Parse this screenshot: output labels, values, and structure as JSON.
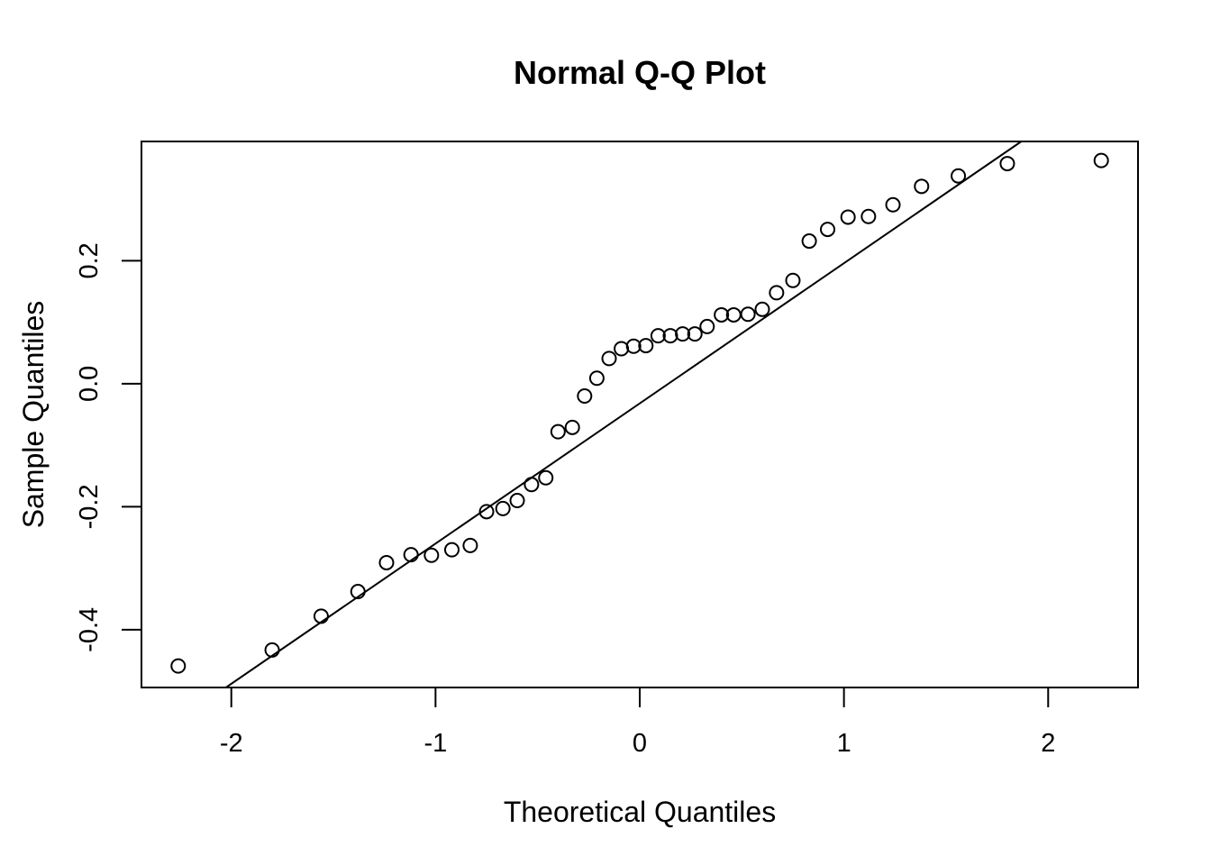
{
  "chart_data": {
    "type": "scatter",
    "title": "Normal Q-Q Plot",
    "xlabel": "Theoretical Quantiles",
    "ylabel": "Sample Quantiles",
    "xlim": [
      -2.44,
      2.44
    ],
    "ylim": [
      -0.494,
      0.394
    ],
    "x_ticks": [
      -2,
      -1,
      0,
      1,
      2
    ],
    "x_tick_labels": [
      "-2",
      "-1",
      "0",
      "1",
      "2"
    ],
    "y_ticks": [
      -0.4,
      -0.2,
      0.0,
      0.2
    ],
    "y_tick_labels": [
      "-0.4",
      "-0.2",
      "0.0",
      "0.2"
    ],
    "grid": false,
    "reference_line": {
      "intercept": -0.032,
      "slope": 0.228
    },
    "points": [
      [
        -2.26,
        -0.459
      ],
      [
        -1.8,
        -0.433
      ],
      [
        -1.56,
        -0.378
      ],
      [
        -1.38,
        -0.338
      ],
      [
        -1.24,
        -0.291
      ],
      [
        -1.12,
        -0.278
      ],
      [
        -1.02,
        -0.279
      ],
      [
        -0.92,
        -0.27
      ],
      [
        -0.83,
        -0.263
      ],
      [
        -0.75,
        -0.208
      ],
      [
        -0.67,
        -0.203
      ],
      [
        -0.6,
        -0.19
      ],
      [
        -0.53,
        -0.164
      ],
      [
        -0.46,
        -0.153
      ],
      [
        -0.4,
        -0.078
      ],
      [
        -0.33,
        -0.071
      ],
      [
        -0.27,
        -0.02
      ],
      [
        -0.21,
        0.009
      ],
      [
        -0.15,
        0.041
      ],
      [
        -0.09,
        0.057
      ],
      [
        -0.03,
        0.061
      ],
      [
        0.03,
        0.062
      ],
      [
        0.09,
        0.078
      ],
      [
        0.15,
        0.078
      ],
      [
        0.21,
        0.081
      ],
      [
        0.27,
        0.081
      ],
      [
        0.33,
        0.093
      ],
      [
        0.4,
        0.112
      ],
      [
        0.46,
        0.112
      ],
      [
        0.53,
        0.113
      ],
      [
        0.6,
        0.121
      ],
      [
        0.67,
        0.148
      ],
      [
        0.75,
        0.168
      ],
      [
        0.83,
        0.232
      ],
      [
        0.92,
        0.251
      ],
      [
        1.02,
        0.271
      ],
      [
        1.12,
        0.272
      ],
      [
        1.24,
        0.291
      ],
      [
        1.38,
        0.321
      ],
      [
        1.56,
        0.338
      ],
      [
        1.8,
        0.358
      ],
      [
        2.26,
        0.363
      ]
    ]
  }
}
